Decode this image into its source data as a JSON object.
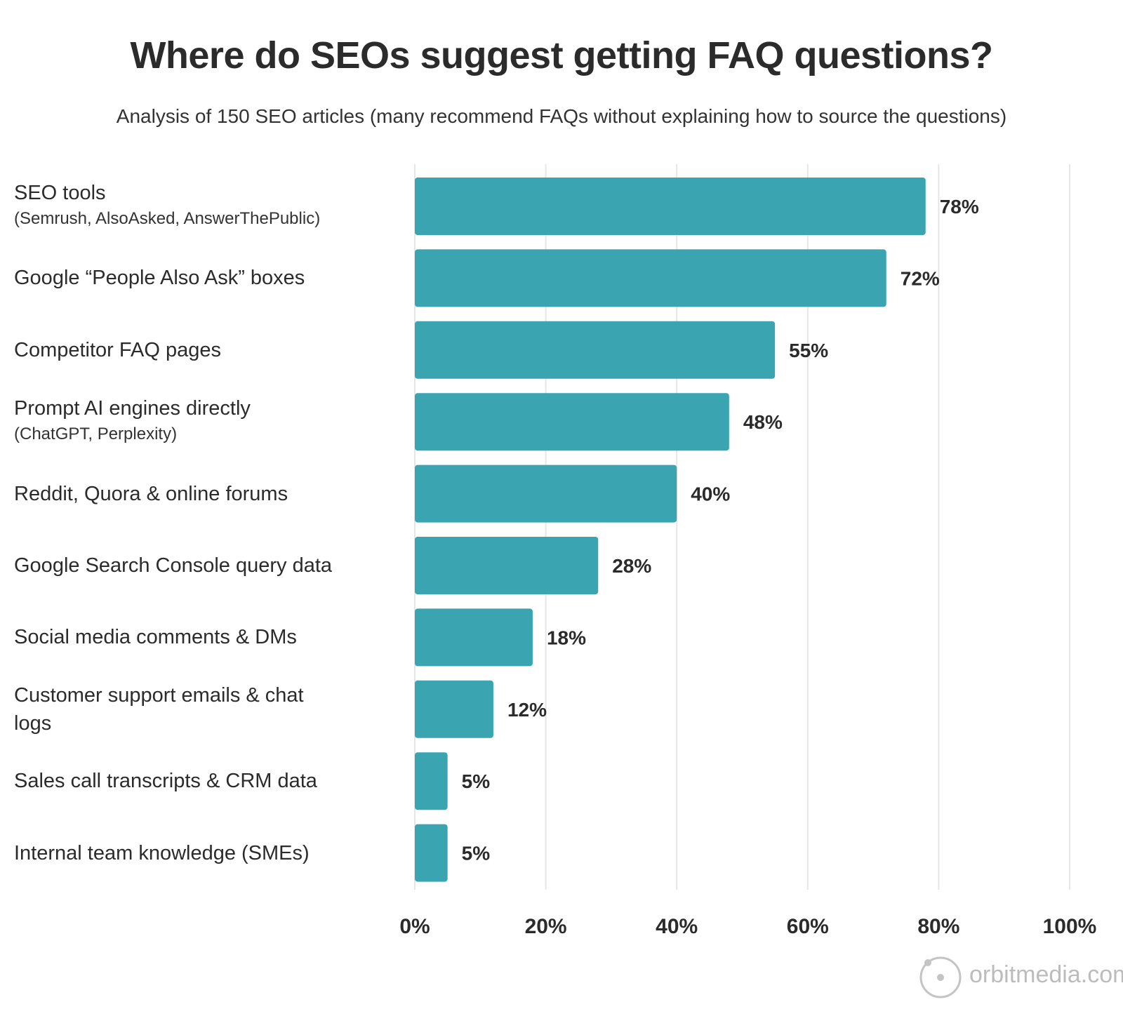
{
  "chart_data": {
    "type": "bar",
    "orientation": "horizontal",
    "title": "Where do SEOs suggest getting FAQ questions?",
    "subtitle": "Analysis of 150 SEO articles (many recommend FAQs without explaining how to source the questions)",
    "categories": [
      {
        "label": "SEO tools",
        "sublabel": "(Semrush, AlsoAsked, AnswerThePublic)"
      },
      {
        "label": "Google “People Also Ask” boxes"
      },
      {
        "label": "Competitor FAQ pages"
      },
      {
        "label": "Prompt AI engines directly",
        "sublabel": "(ChatGPT, Perplexity)"
      },
      {
        "label": "Reddit, Quora & online forums"
      },
      {
        "label": "Google Search Console query data"
      },
      {
        "label": "Social media comments & DMs"
      },
      {
        "label": "Customer support emails & chat logs"
      },
      {
        "label": "Sales call transcripts & CRM data"
      },
      {
        "label": "Internal team knowledge (SMEs)"
      }
    ],
    "values": [
      78,
      72,
      55,
      48,
      40,
      28,
      18,
      12,
      5,
      5
    ],
    "data_labels": [
      "78%",
      "72%",
      "55%",
      "48%",
      "40%",
      "28%",
      "18%",
      "12%",
      "5%",
      "5%"
    ],
    "xlim": [
      0,
      100
    ],
    "xticks": [
      0,
      20,
      40,
      60,
      80,
      100
    ],
    "xtick_labels": [
      "0%",
      "20%",
      "40%",
      "60%",
      "80%",
      "100%"
    ],
    "grid": "vertical",
    "bar_color": "#3aa4b1",
    "grid_color": "#e6e6e6"
  },
  "branding": {
    "logo_text": "orbitmedia.com",
    "logo_color": "#bcbcbc"
  }
}
